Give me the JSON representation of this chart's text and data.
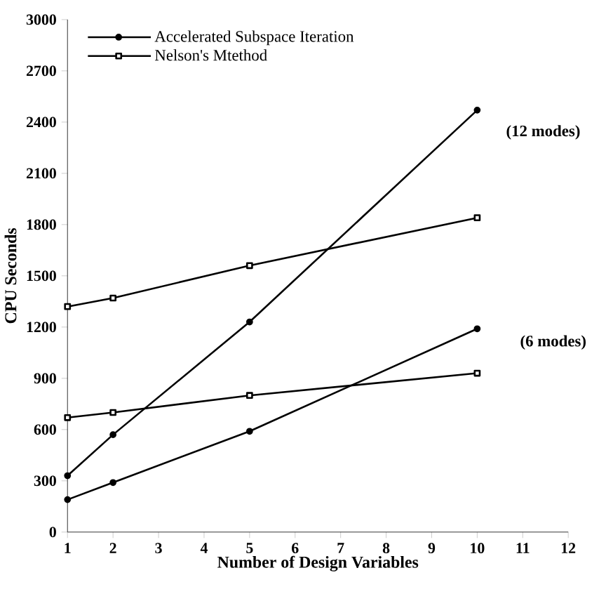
{
  "chart_data": {
    "type": "line",
    "xlabel": "Number of Design Variables",
    "ylabel": "CPU Seconds",
    "x": [
      1,
      2,
      5,
      10
    ],
    "series": [
      {
        "name": "Accelerated Subspace Iteration",
        "color": "#000000",
        "marker": "circle",
        "values": [
          330,
          570,
          1230,
          2470
        ]
      },
      {
        "name": "Nelson's Mtethod",
        "color": "#000000",
        "marker": "square",
        "values": [
          1320,
          1370,
          1560,
          1840
        ]
      },
      {
        "color": "#000000",
        "marker": "circle",
        "values": [
          190,
          290,
          590,
          1190
        ]
      },
      {
        "color": "#000000",
        "marker": "square",
        "values": [
          670,
          700,
          800,
          930
        ]
      }
    ],
    "xlim": [
      1,
      12
    ],
    "xticks": [
      1,
      2,
      3,
      4,
      5,
      6,
      7,
      8,
      9,
      10,
      11,
      12
    ],
    "ylim": [
      0,
      3000
    ],
    "yticks": [
      0,
      300,
      600,
      900,
      1200,
      1500,
      1800,
      2100,
      2400,
      2700,
      3000
    ],
    "grid": false,
    "legend": "top left",
    "line_style": "solid",
    "annotations": [
      "(12 modes)",
      "(6 modes)"
    ]
  }
}
